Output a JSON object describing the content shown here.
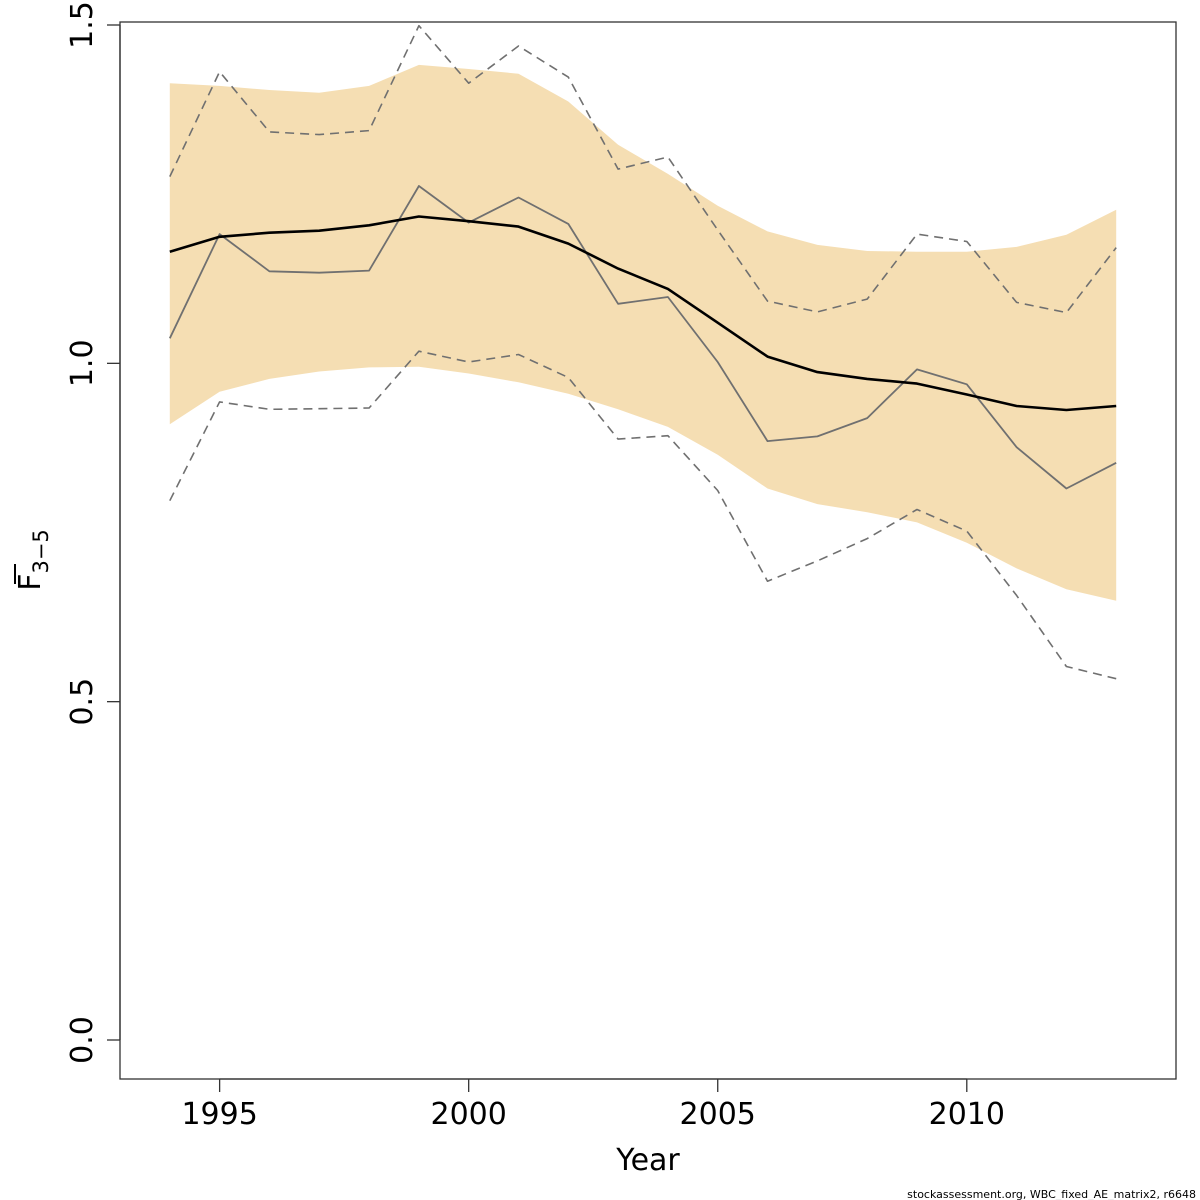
{
  "chart_data": {
    "type": "line",
    "xlabel": "Year",
    "ylabel": {
      "main": "F",
      "sub": "3−5"
    },
    "xlim": [
      1993,
      2014.2
    ],
    "ylim": [
      -0.06,
      1.5
    ],
    "x_ticks": [
      1995,
      2000,
      2005,
      2010
    ],
    "y_ticks": [
      0.0,
      0.5,
      1.0,
      1.5
    ],
    "y_tick_labels": [
      "0.0",
      "0.5",
      "1.0",
      "1.5"
    ],
    "grid": false,
    "x": [
      1994,
      1995,
      1996,
      1997,
      1998,
      1999,
      2000,
      2001,
      2002,
      2003,
      2004,
      2005,
      2006,
      2007,
      2008,
      2009,
      2010,
      2011,
      2012,
      2013
    ],
    "band_color": "#f5deb3",
    "series": [
      {
        "role": "ci_band",
        "upper": [
          1.414,
          1.41,
          1.404,
          1.4,
          1.41,
          1.441,
          1.435,
          1.428,
          1.387,
          1.323,
          1.28,
          1.233,
          1.195,
          1.175,
          1.166,
          1.165,
          1.165,
          1.172,
          1.19,
          1.227
        ],
        "lower": [
          0.91,
          0.958,
          0.977,
          0.988,
          0.994,
          0.995,
          0.985,
          0.972,
          0.955,
          0.932,
          0.906,
          0.865,
          0.815,
          0.792,
          0.78,
          0.765,
          0.735,
          0.697,
          0.666,
          0.649
        ],
        "color": "#f5deb3"
      },
      {
        "role": "estimate",
        "values": [
          1.165,
          1.187,
          1.193,
          1.196,
          1.204,
          1.217,
          1.21,
          1.202,
          1.177,
          1.14,
          1.11,
          1.06,
          1.01,
          0.987,
          0.977,
          0.97,
          0.954,
          0.937,
          0.931,
          0.937
        ],
        "color": "#000000",
        "width": 2.6,
        "dash": ""
      },
      {
        "role": "observed",
        "values": [
          1.037,
          1.191,
          1.136,
          1.134,
          1.137,
          1.262,
          1.208,
          1.245,
          1.206,
          1.088,
          1.098,
          1.002,
          0.885,
          0.892,
          0.919,
          0.991,
          0.969,
          0.876,
          0.815,
          0.853
        ],
        "color": "#707070",
        "width": 1.8,
        "dash": ""
      },
      {
        "role": "observed_upper",
        "values": [
          1.276,
          1.431,
          1.342,
          1.338,
          1.344,
          1.499,
          1.414,
          1.469,
          1.423,
          1.287,
          1.305,
          1.197,
          1.092,
          1.076,
          1.095,
          1.191,
          1.18,
          1.09,
          1.075,
          1.171
        ],
        "color": "#707070",
        "width": 1.6,
        "dash": "9,6"
      },
      {
        "role": "observed_lower",
        "values": [
          0.797,
          0.943,
          0.932,
          0.933,
          0.934,
          1.018,
          1.002,
          1.013,
          0.979,
          0.888,
          0.893,
          0.812,
          0.678,
          0.708,
          0.741,
          0.784,
          0.752,
          0.657,
          0.552,
          0.534
        ],
        "color": "#707070",
        "width": 1.6,
        "dash": "9,6"
      }
    ]
  },
  "footer": "stockassessment.org, WBC_fixed_AE_matrix2, r6648"
}
